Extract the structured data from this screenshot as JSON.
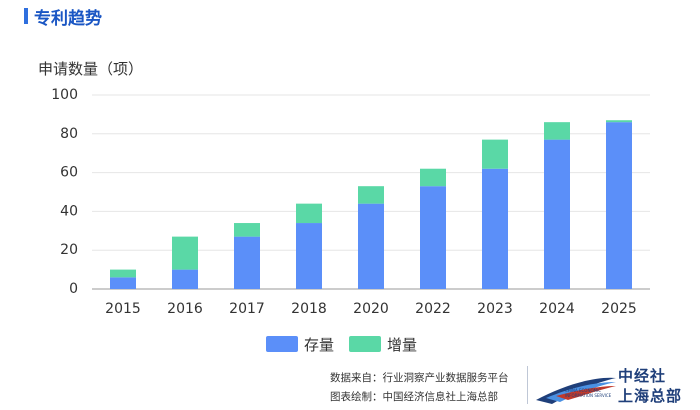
{
  "header": {
    "title": "专利趋势"
  },
  "chart_data": {
    "type": "bar",
    "stacked": true,
    "ylabel": "申请数量（项）",
    "ylim": [
      0,
      100
    ],
    "yticks": [
      0,
      20,
      40,
      60,
      80,
      100
    ],
    "categories": [
      "2015",
      "2016",
      "2017",
      "2018",
      "2020",
      "2022",
      "2023",
      "2024",
      "2025"
    ],
    "series": [
      {
        "name": "存量",
        "color": "#5b8ff9",
        "values": [
          6,
          10,
          27,
          34,
          44,
          53,
          62,
          77,
          86
        ]
      },
      {
        "name": "增量",
        "color": "#5ad8a6",
        "values": [
          4,
          17,
          7,
          10,
          9,
          9,
          15,
          9,
          1
        ]
      }
    ],
    "legend_position": "bottom"
  },
  "footer": {
    "source": "数据来自：行业洞察产业数据服务平台",
    "drawn_by": "图表绘制：中国经济信息社上海总部",
    "logo_cn_line1": "中经社",
    "logo_cn_line2": "上海总部",
    "logo_en_line1": "CHINA ECONOMIC",
    "logo_en_line2": "INFORMATION SERVICE"
  }
}
